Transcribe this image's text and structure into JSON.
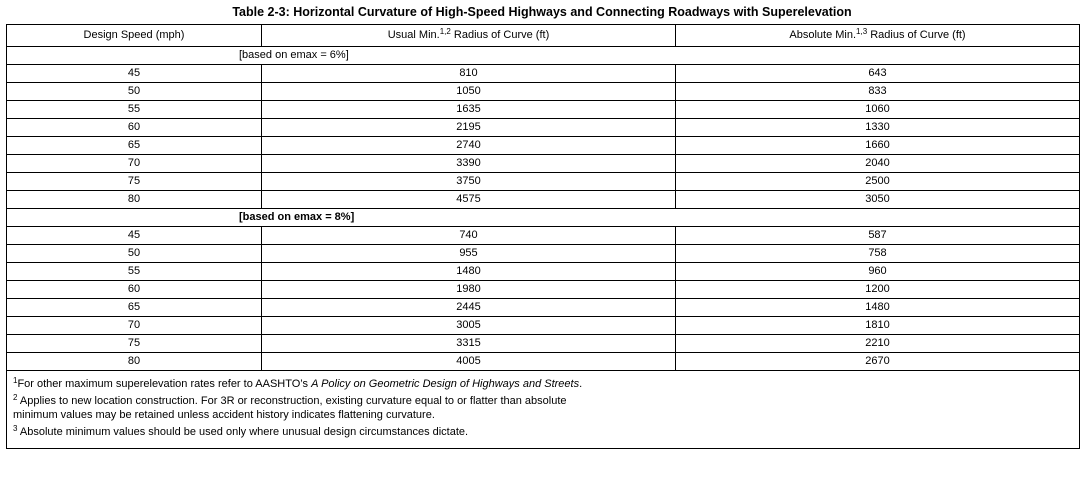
{
  "title": "Table 2-3: Horizontal Curvature of High-Speed Highways and Connecting Roadways with Superelevation",
  "columns": {
    "speed": "Design Speed (mph)",
    "usual": "Usual Min.",
    "usual_sup": "1,2",
    "usual_rest": " Radius of Curve (ft)",
    "absolute": "Absolute Min.",
    "absolute_sup": "1,3",
    "absolute_rest": " Radius of Curve (ft)"
  },
  "sections": [
    {
      "label": "[based on emax = 6%]",
      "bold": false,
      "rows": [
        {
          "speed": "45",
          "usual": "810",
          "absolute": "643"
        },
        {
          "speed": "50",
          "usual": "1050",
          "absolute": "833"
        },
        {
          "speed": "55",
          "usual": "1635",
          "absolute": "1060"
        },
        {
          "speed": "60",
          "usual": "2195",
          "absolute": "1330"
        },
        {
          "speed": "65",
          "usual": "2740",
          "absolute": "1660"
        },
        {
          "speed": "70",
          "usual": "3390",
          "absolute": "2040"
        },
        {
          "speed": "75",
          "usual": "3750",
          "absolute": "2500"
        },
        {
          "speed": "80",
          "usual": "4575",
          "absolute": "3050"
        }
      ]
    },
    {
      "label": "[based on emax = 8%]",
      "bold": true,
      "rows": [
        {
          "speed": "45",
          "usual": "740",
          "absolute": "587"
        },
        {
          "speed": "50",
          "usual": "955",
          "absolute": "758"
        },
        {
          "speed": "55",
          "usual": "1480",
          "absolute": "960"
        },
        {
          "speed": "60",
          "usual": "1980",
          "absolute": "1200"
        },
        {
          "speed": "65",
          "usual": "2445",
          "absolute": "1480"
        },
        {
          "speed": "70",
          "usual": "3005",
          "absolute": "1810"
        },
        {
          "speed": "75",
          "usual": "3315",
          "absolute": "2210"
        },
        {
          "speed": "80",
          "usual": "4005",
          "absolute": "2670"
        }
      ]
    }
  ],
  "notes": [
    {
      "sup": "1",
      "text": "For other maximum superelevation rates refer to AASHTO’s ",
      "italic": "A Policy on Geometric Design of Highways and Streets",
      "after": "."
    },
    {
      "sup": "2",
      "text": " Applies to new location construction. For 3R or reconstruction, existing curvature equal to or flatter than absolute minimum values may be retained unless accident history indicates flattening curvature.",
      "italic": "",
      "after": ""
    },
    {
      "sup": "3",
      "text": " Absolute minimum values should be used only where unusual design circumstances dictate.",
      "italic": "",
      "after": ""
    }
  ]
}
